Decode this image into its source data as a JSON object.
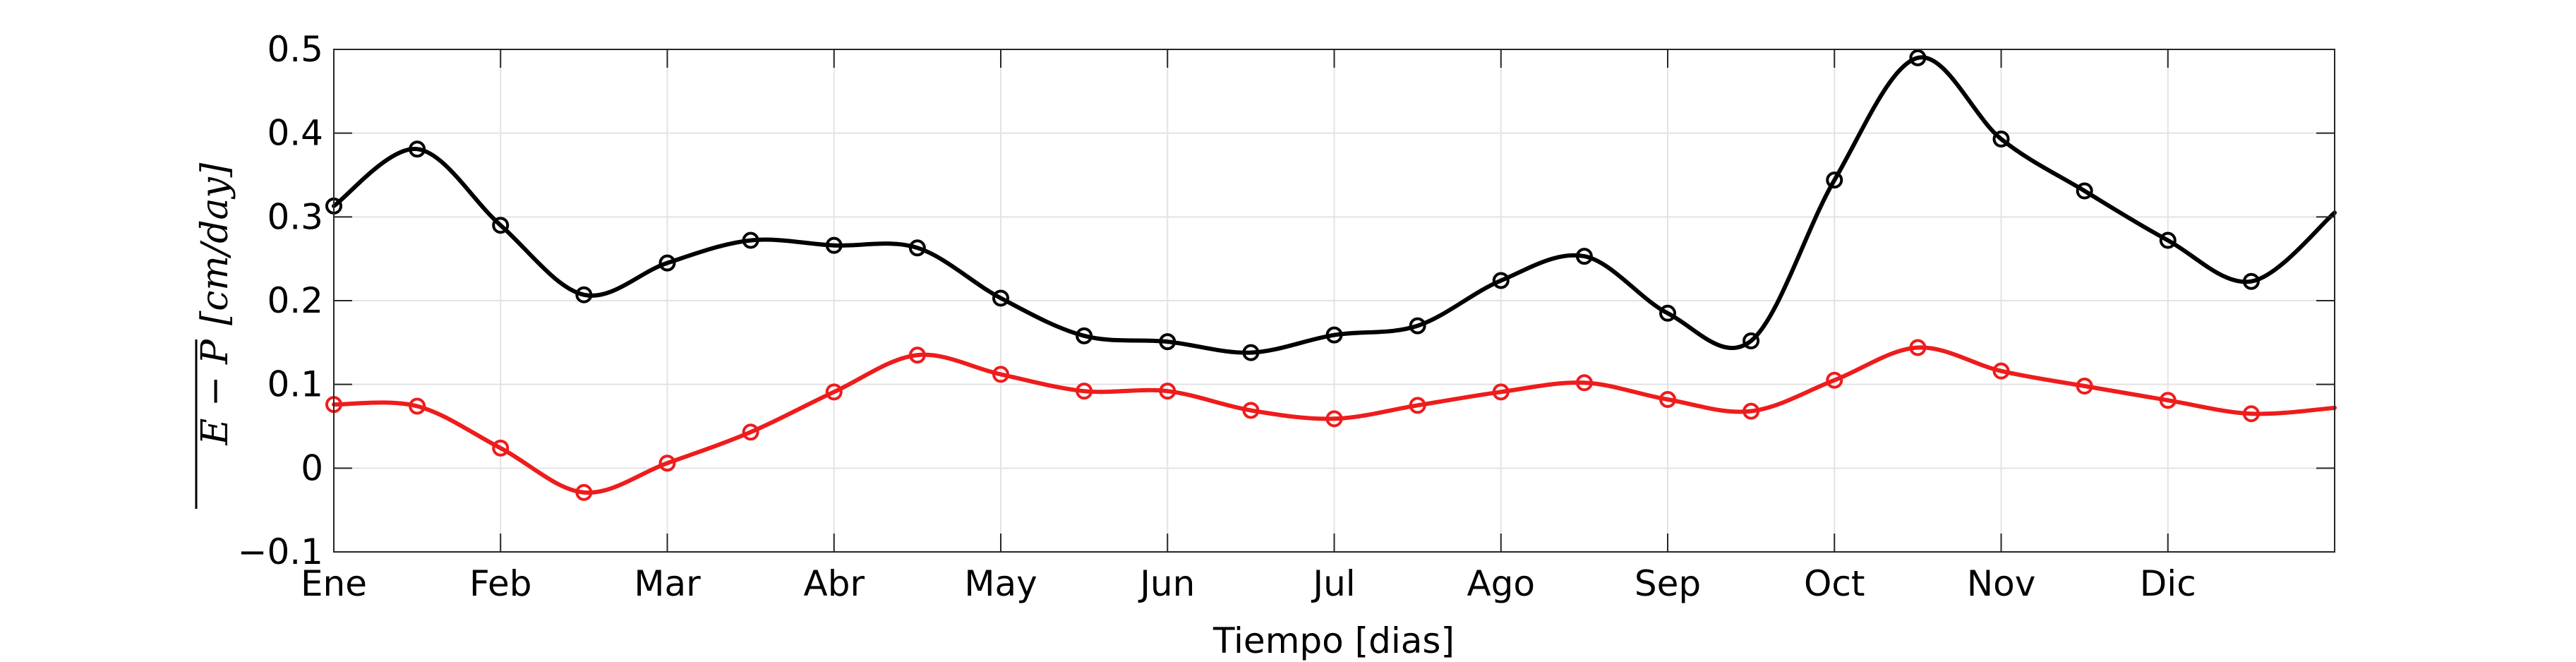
{
  "chart_data": {
    "type": "line",
    "xlabel": "Tiempo [dias]",
    "ylabel": {
      "math": "E − P",
      "units": "[cm/day]"
    },
    "ylim": [
      -0.1,
      0.5
    ],
    "xlim": [
      0,
      24
    ],
    "yticks": [
      "−0.1",
      "0",
      "0.1",
      "0.2",
      "0.3",
      "0.4",
      "0.5"
    ],
    "ytick_values": [
      -0.1,
      0,
      0.1,
      0.2,
      0.3,
      0.4,
      0.5
    ],
    "xtick_labels": [
      "Ene",
      "Feb",
      "Mar",
      "Abr",
      "May",
      "Jun",
      "Jul",
      "Ago",
      "Sep",
      "Oct",
      "Nov",
      "Dic"
    ],
    "xtick_values": [
      0,
      2,
      4,
      6,
      8,
      10,
      12,
      14,
      16,
      18,
      20,
      22
    ],
    "grid": true,
    "series": [
      {
        "color": "#000000",
        "marker": "circle",
        "x": [
          0,
          1,
          2,
          3,
          4,
          5,
          6,
          7,
          8,
          9,
          10,
          11,
          12,
          13,
          14,
          15,
          16,
          17,
          18,
          19,
          20,
          21,
          22,
          23
        ],
        "values": [
          0.313,
          0.381,
          0.29,
          0.207,
          0.245,
          0.272,
          0.266,
          0.263,
          0.203,
          0.158,
          0.151,
          0.138,
          0.159,
          0.17,
          0.224,
          0.253,
          0.185,
          0.152,
          0.344,
          0.49,
          0.393,
          0.331,
          0.272,
          0.223
        ],
        "tail_value": 0.305
      },
      {
        "color": "#ee1c1c",
        "marker": "circle",
        "x": [
          0,
          1,
          2,
          3,
          4,
          5,
          6,
          7,
          8,
          9,
          10,
          11,
          12,
          13,
          14,
          15,
          16,
          17,
          18,
          19,
          20,
          21,
          22,
          23
        ],
        "values": [
          0.076,
          0.074,
          0.024,
          -0.029,
          0.006,
          0.043,
          0.091,
          0.135,
          0.112,
          0.092,
          0.092,
          0.069,
          0.059,
          0.075,
          0.091,
          0.102,
          0.082,
          0.068,
          0.105,
          0.144,
          0.116,
          0.098,
          0.081,
          0.065
        ],
        "tail_value": 0.072
      }
    ]
  }
}
